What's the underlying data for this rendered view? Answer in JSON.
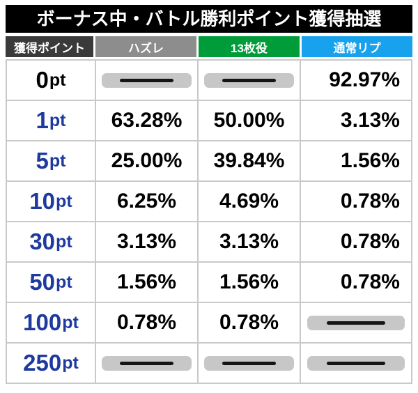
{
  "title": "ボーナス中・バトル勝利ポイント獲得抽選",
  "colors": {
    "title_bg": "#000000",
    "title_text": "#ffffff",
    "header_point_bg": "#3a3a3a",
    "header_hazure_bg": "#8d8d8d",
    "header_13mai_bg": "#009c3a",
    "header_tsujorep_bg": "#18a2ee",
    "point_label": "#1e3a9e",
    "point_label_zero": "#000000",
    "value_text": "#000000",
    "grid_line": "#c9c9c9",
    "dash_pill_bg": "#c7c7c7"
  },
  "chart_data": {
    "type": "table",
    "title": "ボーナス中・バトル勝利ポイント獲得抽選",
    "columns": [
      "獲得ポイント",
      "ハズレ",
      "13枚役",
      "通常リプ"
    ],
    "rows": [
      {
        "point": "0",
        "unit": "pt",
        "values": [
          "—",
          "—",
          "92.97%"
        ]
      },
      {
        "point": "1",
        "unit": "pt",
        "values": [
          "63.28%",
          "50.00%",
          "3.13%"
        ]
      },
      {
        "point": "5",
        "unit": "pt",
        "values": [
          "25.00%",
          "39.84%",
          "1.56%"
        ]
      },
      {
        "point": "10",
        "unit": "pt",
        "values": [
          "6.25%",
          "4.69%",
          "0.78%"
        ]
      },
      {
        "point": "30",
        "unit": "pt",
        "values": [
          "3.13%",
          "3.13%",
          "0.78%"
        ]
      },
      {
        "point": "50",
        "unit": "pt",
        "values": [
          "1.56%",
          "1.56%",
          "0.78%"
        ]
      },
      {
        "point": "100",
        "unit": "pt",
        "values": [
          "0.78%",
          "0.78%",
          "—"
        ]
      },
      {
        "point": "250",
        "unit": "pt",
        "values": [
          "—",
          "—",
          "—"
        ]
      }
    ]
  }
}
